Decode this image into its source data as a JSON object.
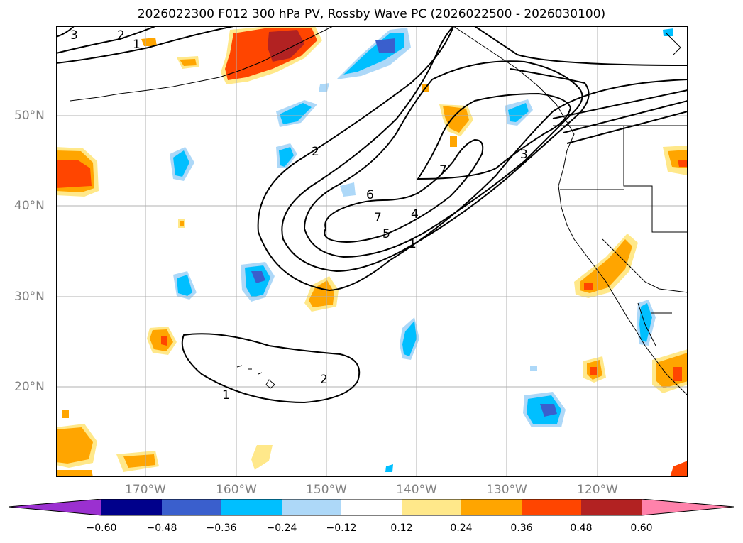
{
  "title": "2026022300 F012 300 hPa PV, Rossby Wave PC (2026022500 - 2026030100)",
  "lat_labels": [
    "50°N",
    "40°N",
    "30°N",
    "20°N"
  ],
  "lon_labels": [
    "170°W",
    "160°W",
    "150°W",
    "140°W",
    "130°W",
    "120°W"
  ],
  "contour_labels": [
    "3",
    "2",
    "1",
    "2",
    "6",
    "7",
    "5",
    "4",
    "1",
    "7",
    "3",
    "1",
    "2"
  ],
  "colorbar": {
    "ticks": [
      "−0.60",
      "−0.48",
      "−0.36",
      "−0.24",
      "−0.12",
      "0.12",
      "0.24",
      "0.36",
      "0.48",
      "0.60"
    ],
    "colors": [
      "#9b30d0",
      "#00008b",
      "#3a5fcd",
      "#00bfff",
      "#add8f8",
      "#ffffff",
      "#ffe88a",
      "#ffa500",
      "#ff4500",
      "#b22222",
      "#ff82ab"
    ]
  }
}
